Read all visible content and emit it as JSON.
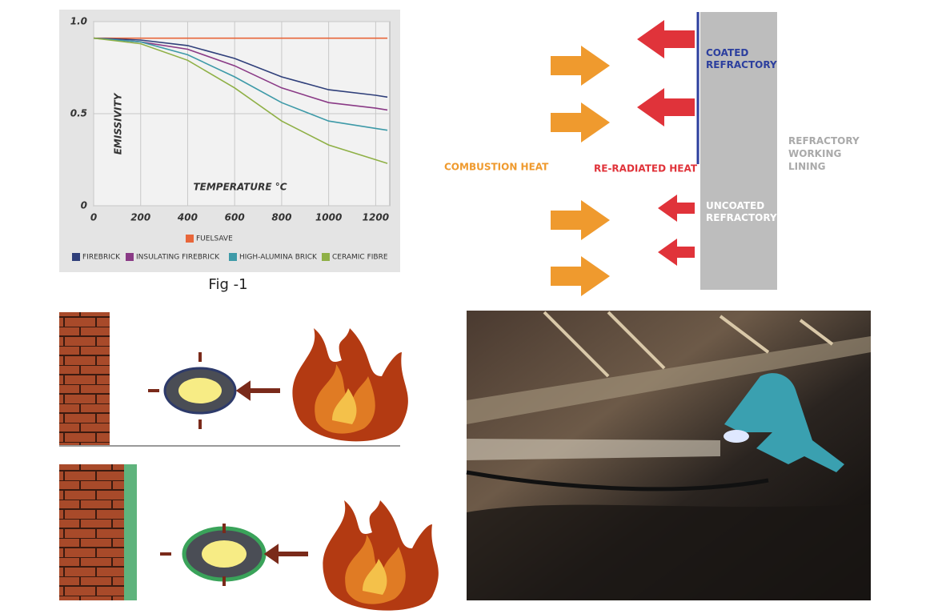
{
  "chart_data": {
    "type": "line",
    "x_label": "TEMPERATURE °C",
    "y_label": "EMISSIVITY",
    "caption": "Fig -1",
    "x": [
      0,
      200,
      400,
      600,
      800,
      1000,
      1200,
      1250
    ],
    "xlim": [
      0,
      1260
    ],
    "xticks": [
      0,
      200,
      400,
      600,
      800,
      1000,
      1200
    ],
    "ylim": [
      0,
      1
    ],
    "yticks": [
      0,
      {
        "value": 0.5,
        "label": "0.5"
      },
      {
        "value": 1,
        "label": "1.0"
      }
    ],
    "grid": true,
    "series": [
      {
        "name": "FUELSAVE",
        "color": "#e8663a",
        "values": [
          0.91,
          0.91,
          0.91,
          0.91,
          0.91,
          0.91,
          0.91,
          0.91
        ]
      },
      {
        "name": "FIREBRICK",
        "color": "#2f3f7a",
        "values": [
          0.91,
          0.9,
          0.87,
          0.8,
          0.7,
          0.63,
          0.6,
          0.59
        ]
      },
      {
        "name": "INSULATING FIREBRICK",
        "color": "#8a3a86",
        "values": [
          0.91,
          0.89,
          0.85,
          0.76,
          0.64,
          0.56,
          0.53,
          0.52
        ]
      },
      {
        "name": "HIGH-ALUMINA BRICK",
        "color": "#3e9aa8",
        "values": [
          0.91,
          0.89,
          0.82,
          0.7,
          0.56,
          0.46,
          0.42,
          0.41
        ]
      },
      {
        "name": "CERAMIC FIBRE",
        "color": "#8fb046",
        "values": [
          0.91,
          0.88,
          0.79,
          0.64,
          0.46,
          0.33,
          0.25,
          0.23
        ]
      }
    ]
  },
  "diagram": {
    "coated": [
      "COATED",
      "REFRACTORY"
    ],
    "uncoated": [
      "UNCOATED",
      "REFRACTORY"
    ],
    "lining": [
      "REFRACTORY",
      "WORKING",
      "LINING"
    ],
    "combustion_heat": "COMBUSTION HEAT",
    "reradiated_heat": "RE-RADIATED HEAT"
  }
}
